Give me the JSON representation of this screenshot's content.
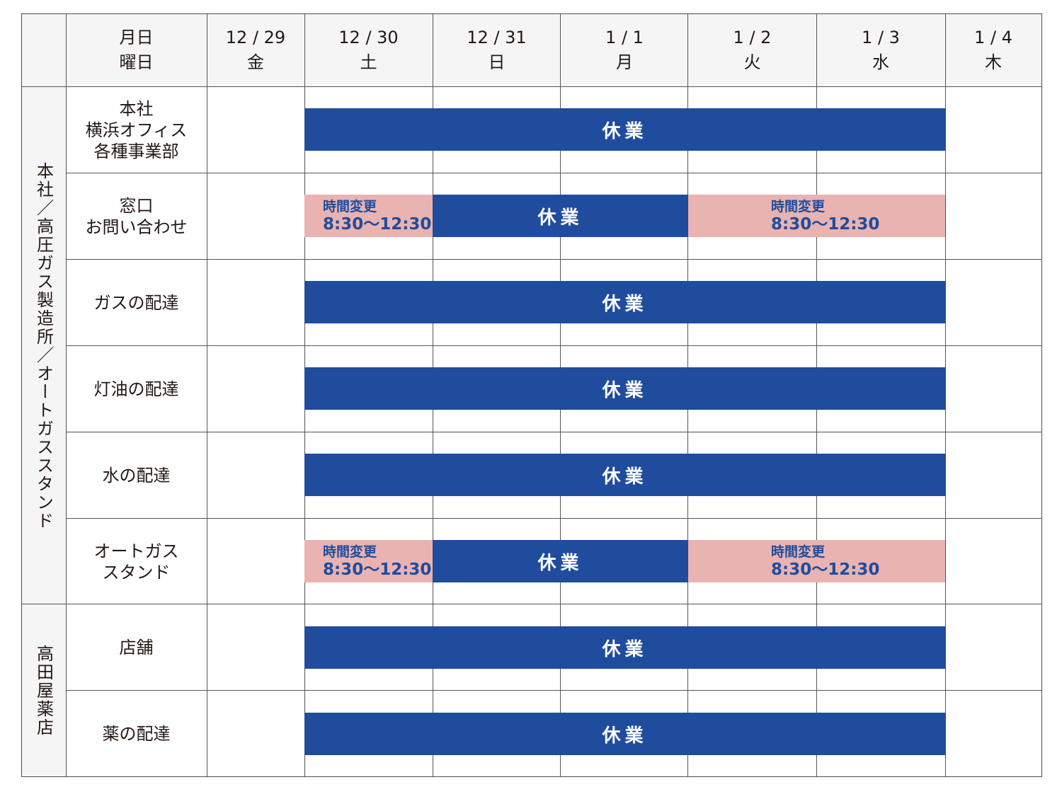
{
  "header": {
    "corner": "",
    "label_line1": "月日",
    "label_line2": "曜日",
    "dates": [
      {
        "date": "12 / 29",
        "day": "金"
      },
      {
        "date": "12 / 30",
        "day": "土"
      },
      {
        "date": "12 / 31",
        "day": "日"
      },
      {
        "date": "1 / 1",
        "day": "月"
      },
      {
        "date": "1 / 2",
        "day": "火"
      },
      {
        "date": "1 / 3",
        "day": "水"
      },
      {
        "date": "1 / 4",
        "day": "木"
      }
    ]
  },
  "groups": [
    {
      "label": "本社／高圧ガス製造所／オートガススタンド"
    },
    {
      "label": "高田屋薬店"
    }
  ],
  "rows": [
    {
      "lines": [
        "本社",
        "横浜オフィス",
        "各種事業部"
      ],
      "closed_label": "休業"
    },
    {
      "lines": [
        "窓口",
        "お問い合わせ"
      ],
      "closed_label": "休業",
      "change_left": {
        "title": "時間変更",
        "time": "8:30～12:30"
      },
      "change_right": {
        "title": "時間変更",
        "time": "8:30～12:30"
      }
    },
    {
      "lines": [
        "ガスの配達"
      ],
      "closed_label": "休業"
    },
    {
      "lines": [
        "灯油の配達"
      ],
      "closed_label": "休業"
    },
    {
      "lines": [
        "水の配達"
      ],
      "closed_label": "休業"
    },
    {
      "lines": [
        "オートガス",
        "スタンド"
      ],
      "closed_label": "休業",
      "change_left": {
        "title": "時間変更",
        "time": "8:30～12:30"
      },
      "change_right": {
        "title": "時間変更",
        "time": "8:30～12:30"
      }
    },
    {
      "lines": [
        "店舗"
      ],
      "closed_label": "休業"
    },
    {
      "lines": [
        "薬の配達"
      ],
      "closed_label": "休業"
    }
  ],
  "colors": {
    "closed": "#1f4c9c",
    "time_change": "#e9b3b1",
    "header_bg": "#f5f5f5"
  }
}
